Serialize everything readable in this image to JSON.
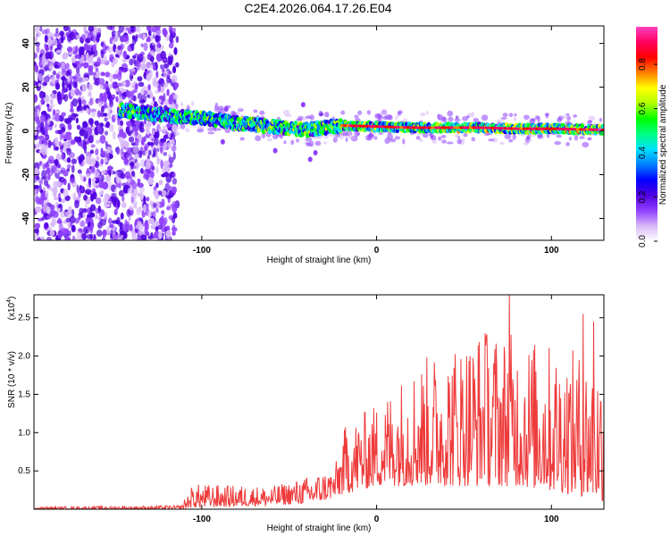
{
  "figure_title": "C2E4.2026.064.17.26.E04",
  "chart_data": [
    {
      "type": "heatmap",
      "title": "C2E4.2026.064.17.26.E04",
      "xlabel": "Height of straight line (km)",
      "ylabel": "Frequency (Hz)",
      "xlim": [
        -196,
        130
      ],
      "ylim": [
        -50,
        48
      ],
      "x_ticks": [
        -100,
        0,
        100
      ],
      "x_tick_labels": [
        "-100",
        "0",
        "100"
      ],
      "y_ticks": [
        -40,
        -20,
        0,
        20,
        40
      ],
      "y_tick_labels": [
        "-40",
        "-20",
        "0",
        "20",
        "40"
      ],
      "colorbar": {
        "label": "Normalized spectral amplitude",
        "range": [
          0,
          0.97
        ],
        "ticks": [
          0.0,
          0.2,
          0.4,
          0.6,
          0.8
        ],
        "tick_labels": [
          "0.0",
          "0.2",
          "0.4",
          "0.6",
          "0.8"
        ],
        "colormap": [
          "#ffffff",
          "#d8b8f8",
          "#9040ff",
          "#5000e0",
          "#0000ff",
          "#0080ff",
          "#00e0ff",
          "#00ff80",
          "#00ff00",
          "#b0ff00",
          "#ffff00",
          "#ff8000",
          "#ff0000",
          "#ff0060",
          "#ff40c0"
        ]
      },
      "features": {
        "noise_region_x": [
          -196,
          -114
        ],
        "signal_start_x": -147,
        "trace": [
          {
            "x": -147,
            "freq": 9.5
          },
          {
            "x": -120,
            "freq": 7
          },
          {
            "x": -100,
            "freq": 6
          },
          {
            "x": -80,
            "freq": 3.5
          },
          {
            "x": -60,
            "freq": 2
          },
          {
            "x": -40,
            "freq": 0.5
          },
          {
            "x": -20,
            "freq": 2.5
          },
          {
            "x": 0,
            "freq": 2
          },
          {
            "x": 20,
            "freq": 1.5
          },
          {
            "x": 40,
            "freq": 1.5
          },
          {
            "x": 60,
            "freq": 1.5
          },
          {
            "x": 80,
            "freq": 1
          },
          {
            "x": 100,
            "freq": 1
          },
          {
            "x": 130,
            "freq": 0.5
          }
        ]
      }
    },
    {
      "type": "line",
      "xlabel": "Height of straight line (km)",
      "ylabel": "SNR (10 * v/v)",
      "y_multiplier": "(x10",
      "y_multiplier_exp": "4",
      "y_multiplier_close": ")",
      "xlim": [
        -196,
        130
      ],
      "ylim": [
        0,
        2.8
      ],
      "x_ticks": [
        -100,
        0,
        100
      ],
      "x_tick_labels": [
        "-100",
        "0",
        "100"
      ],
      "y_ticks": [
        0.5,
        1.0,
        1.5,
        2.0,
        2.5
      ],
      "y_tick_labels": [
        "0.5",
        "1.0",
        "1.5",
        "2.0",
        "2.5"
      ],
      "color": "#ee3b3b",
      "envelope": [
        {
          "x": -196,
          "low": 0.0,
          "high": 0.03
        },
        {
          "x": -112,
          "low": 0.0,
          "high": 0.05
        },
        {
          "x": -105,
          "low": 0.02,
          "high": 0.33
        },
        {
          "x": -60,
          "low": 0.05,
          "high": 0.3
        },
        {
          "x": -36,
          "low": 0.08,
          "high": 0.45
        },
        {
          "x": -24,
          "low": 0.15,
          "high": 0.55
        },
        {
          "x": -18,
          "low": 0.2,
          "high": 1.1
        },
        {
          "x": 0,
          "low": 0.3,
          "high": 1.4
        },
        {
          "x": 20,
          "low": 0.3,
          "high": 1.9
        },
        {
          "x": 60,
          "low": 0.3,
          "high": 2.4
        },
        {
          "x": 80,
          "low": 0.3,
          "high": 2.3
        },
        {
          "x": 110,
          "low": 0.2,
          "high": 2.1
        },
        {
          "x": 130,
          "low": 0.1,
          "high": 2.0
        }
      ],
      "peaks": [
        {
          "x": 62,
          "y": 2.3
        },
        {
          "x": 76,
          "y": 2.8
        },
        {
          "x": 118,
          "y": 2.55
        },
        {
          "x": 124,
          "y": 2.45
        }
      ]
    }
  ]
}
